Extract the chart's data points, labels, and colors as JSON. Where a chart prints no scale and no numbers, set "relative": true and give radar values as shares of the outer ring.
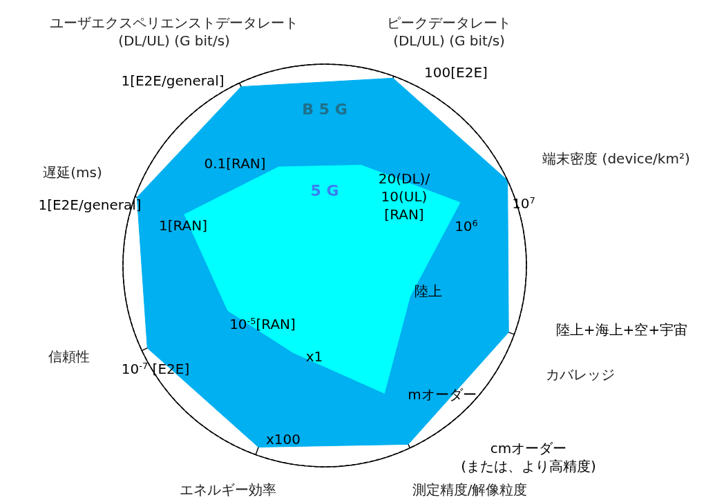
{
  "chart_data": {
    "type": "radar",
    "relative": true,
    "legend": false,
    "categories": [
      "ピークデータレート(DL/UL) (G bit/s)",
      "端末密度 (device/km²)",
      "カバレッジ",
      "測定精度/解像粒度",
      "エネルギー効率",
      "信頼性",
      "遅延(ms)",
      "ユーザエクスペリエンストデータレート(DL/UL) (G bit/s)"
    ],
    "series": [
      {
        "name": "B 5 G",
        "color": "#00b0f0",
        "values": [
          0.99,
          1.0,
          0.97,
          0.98,
          0.96,
          0.97,
          0.99,
          0.98
        ]
      },
      {
        "name": "5 G",
        "color": "#00ffff",
        "values": [
          0.53,
          0.74,
          0.45,
          0.7,
          0.46,
          0.53,
          0.74,
          0.54
        ]
      }
    ],
    "annotations": [
      "1[E2E/general]",
      "100[E2E]",
      "10$^{7}$",
      "10$^{6}$",
      "20(DL)/\n10(UL)\n[RAN]",
      "0.1[RAN]",
      "1[E2E/general]",
      "1[RAN]",
      "陸上",
      "陸上+海上+空+宇宙",
      "mオーダー",
      "cmオーダー\n(または、より高精度)",
      "x1",
      "x100",
      "10$^{-5}$[RAN]",
      "10$^{-7}$ [E2E]"
    ]
  }
}
